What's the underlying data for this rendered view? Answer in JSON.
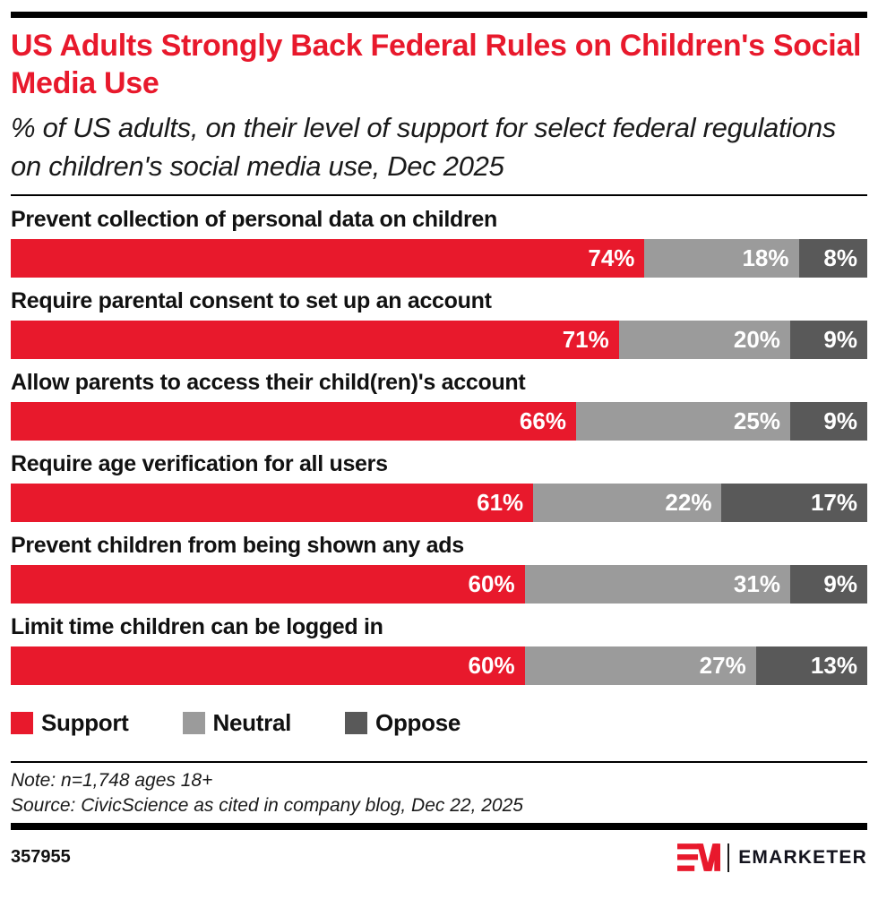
{
  "header": {
    "title": "US Adults Strongly Back Federal Rules on Children's Social Media Use",
    "subtitle": "% of US adults, on their level of support for select federal regulations on children's social media use, Dec 2025"
  },
  "colors": {
    "support": "#E8192C",
    "neutral": "#9B9B9B",
    "oppose": "#595959",
    "title_accent": "#E8192C",
    "rule": "#000000"
  },
  "chart_data": {
    "type": "bar",
    "orientation": "horizontal",
    "stacked": true,
    "xlim": [
      0,
      100
    ],
    "value_suffix": "%",
    "grid": false,
    "legend_position": "bottom",
    "title": "US Adults Strongly Back Federal Rules on Children's Social Media Use",
    "categories": [
      "Prevent collection of personal data on children",
      "Require parental consent to set up an account",
      "Allow parents to access their child(ren)'s account",
      "Require age verification for all users",
      "Prevent children from being shown any ads",
      "Limit time children can be logged in"
    ],
    "series": [
      {
        "name": "Support",
        "color": "#E8192C",
        "values": [
          74,
          71,
          66,
          61,
          60,
          60
        ]
      },
      {
        "name": "Neutral",
        "color": "#9B9B9B",
        "values": [
          18,
          20,
          25,
          22,
          31,
          27
        ]
      },
      {
        "name": "Oppose",
        "color": "#595959",
        "values": [
          8,
          9,
          9,
          17,
          9,
          13
        ]
      }
    ]
  },
  "legend": {
    "items": [
      {
        "label": "Support",
        "color": "#E8192C"
      },
      {
        "label": "Neutral",
        "color": "#9B9B9B"
      },
      {
        "label": "Oppose",
        "color": "#595959"
      }
    ]
  },
  "footnotes": {
    "note": "Note: n=1,748 ages 18+",
    "source": "Source: CivicScience as cited in company blog, Dec 22, 2025"
  },
  "footer": {
    "chart_id": "357955",
    "brand_name": "EMARKETER"
  }
}
